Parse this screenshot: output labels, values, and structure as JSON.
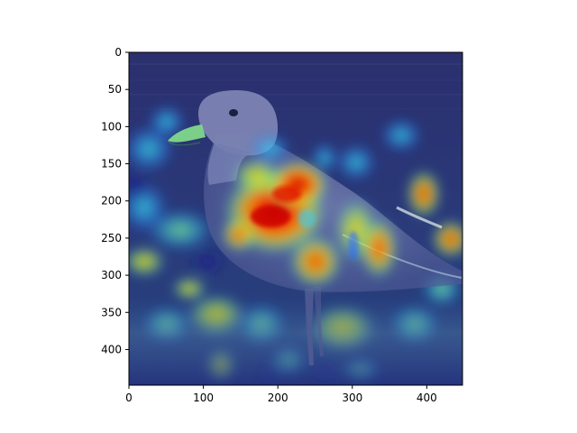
{
  "image": {
    "subject": "seagull standing, overlaid with jet-colormap attention heatmap",
    "colormap": "jet",
    "overlay_alpha": 0.55
  },
  "axes": {
    "x_ticks": [
      {
        "value": 0,
        "label": "0"
      },
      {
        "value": 100,
        "label": "100"
      },
      {
        "value": 200,
        "label": "200"
      },
      {
        "value": 300,
        "label": "300"
      },
      {
        "value": 400,
        "label": "400"
      }
    ],
    "y_ticks": [
      {
        "value": 0,
        "label": "0"
      },
      {
        "value": 50,
        "label": "50"
      },
      {
        "value": 100,
        "label": "100"
      },
      {
        "value": 150,
        "label": "150"
      },
      {
        "value": 200,
        "label": "200"
      },
      {
        "value": 250,
        "label": "250"
      },
      {
        "value": 300,
        "label": "300"
      },
      {
        "value": 350,
        "label": "350"
      },
      {
        "value": 400,
        "label": "400"
      }
    ],
    "x_range": [
      0,
      448
    ],
    "y_range": [
      448,
      0
    ]
  },
  "colors": {
    "frame": "#000000",
    "background": "#ffffff"
  }
}
